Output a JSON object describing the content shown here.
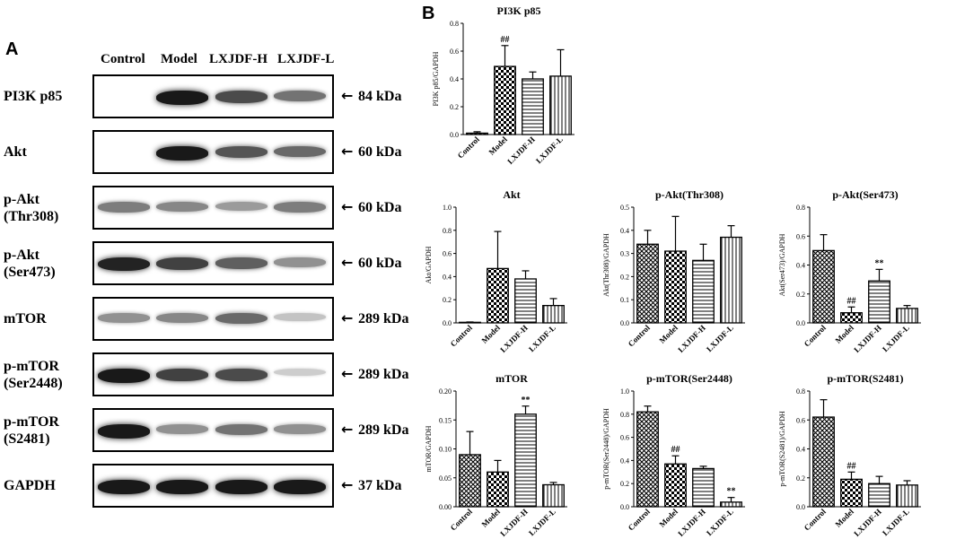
{
  "panelA": {
    "letter": "A",
    "lanes": [
      "Control",
      "Model",
      "LXJDF-H",
      "LXJDF-L"
    ],
    "blots": [
      {
        "label": "PI3K p85",
        "size": "84 kDa",
        "intensity": [
          0.0,
          0.95,
          0.7,
          0.5
        ]
      },
      {
        "label": "Akt",
        "size": "60 kDa",
        "intensity": [
          0.0,
          0.95,
          0.65,
          0.55
        ]
      },
      {
        "label": "p-Akt\n(Thr308)",
        "size": "60 kDa",
        "intensity": [
          0.45,
          0.4,
          0.3,
          0.45
        ]
      },
      {
        "label": "p-Akt\n(Ser473)",
        "size": "60 kDa",
        "intensity": [
          0.9,
          0.75,
          0.6,
          0.35
        ]
      },
      {
        "label": "mTOR",
        "size": "289 kDa",
        "intensity": [
          0.35,
          0.4,
          0.55,
          0.1
        ]
      },
      {
        "label": "p-mTOR\n(Ser2448)",
        "size": "289 kDa",
        "intensity": [
          0.95,
          0.75,
          0.7,
          0.05
        ]
      },
      {
        "label": "p-mTOR\n(S2481)",
        "size": "289 kDa",
        "intensity": [
          0.95,
          0.35,
          0.5,
          0.35
        ]
      },
      {
        "label": "GAPDH",
        "size": "37 kDa",
        "intensity": [
          0.95,
          0.95,
          0.95,
          0.95
        ]
      }
    ]
  },
  "panelB": {
    "letter": "B"
  },
  "chart_data": [
    {
      "type": "bar",
      "title": "PI3K p85",
      "ylabel": "PI3K p85/GAPDH",
      "categories": [
        "Control",
        "Model",
        "LXJDF-H",
        "LXJDF-L"
      ],
      "values": [
        0.01,
        0.49,
        0.4,
        0.42
      ],
      "errors": [
        0.01,
        0.15,
        0.05,
        0.19
      ],
      "ylim": [
        0,
        0.8
      ],
      "yticks": [
        "0.0",
        "0.2",
        "0.4",
        "0.6",
        "0.8"
      ],
      "annotations": [
        "",
        "##",
        "",
        ""
      ],
      "patterns": [
        "cross",
        "check",
        "hline",
        "vline"
      ]
    },
    {
      "type": "bar",
      "title": "Akt",
      "ylabel": "Akt/GAPDH",
      "categories": [
        "Control",
        "Model",
        "LXJDF-H",
        "LXJDF-L"
      ],
      "values": [
        0.005,
        0.47,
        0.38,
        0.15
      ],
      "errors": [
        0.003,
        0.32,
        0.07,
        0.06
      ],
      "ylim": [
        0,
        1.0
      ],
      "yticks": [
        "0.0",
        "0.2",
        "0.4",
        "0.6",
        "0.8",
        "1.0"
      ],
      "annotations": [
        "",
        "",
        "",
        ""
      ],
      "patterns": [
        "cross",
        "check",
        "hline",
        "vline"
      ]
    },
    {
      "type": "bar",
      "title": "p-Akt(Thr308)",
      "ylabel": "Akt(Thr308)/GAPDH",
      "categories": [
        "Control",
        "Model",
        "LXJDF-H",
        "LXJDF-L"
      ],
      "values": [
        0.34,
        0.31,
        0.27,
        0.37
      ],
      "errors": [
        0.06,
        0.15,
        0.07,
        0.05
      ],
      "ylim": [
        0,
        0.5
      ],
      "yticks": [
        "0.0",
        "0.1",
        "0.2",
        "0.3",
        "0.4",
        "0.5"
      ],
      "annotations": [
        "",
        "",
        "",
        ""
      ],
      "patterns": [
        "cross",
        "check",
        "hline",
        "vline"
      ]
    },
    {
      "type": "bar",
      "title": "p-Akt(Ser473)",
      "ylabel": "Akt(Ser473)/GAPDH",
      "categories": [
        "Control",
        "Model",
        "LXJDF-H",
        "LXJDF-L"
      ],
      "values": [
        0.5,
        0.07,
        0.29,
        0.1
      ],
      "errors": [
        0.11,
        0.04,
        0.08,
        0.02
      ],
      "ylim": [
        0,
        0.8
      ],
      "yticks": [
        "0.0",
        "0.2",
        "0.4",
        "0.6",
        "0.8"
      ],
      "annotations": [
        "",
        "##",
        "**",
        ""
      ],
      "patterns": [
        "cross",
        "check",
        "hline",
        "vline"
      ]
    },
    {
      "type": "bar",
      "title": "mTOR",
      "ylabel": "mTOR/GAPDH",
      "categories": [
        "Control",
        "Model",
        "LXJDF-H",
        "LXJDF-L"
      ],
      "values": [
        0.09,
        0.06,
        0.16,
        0.038
      ],
      "errors": [
        0.04,
        0.02,
        0.014,
        0.004
      ],
      "ylim": [
        0,
        0.2
      ],
      "yticks": [
        "0.00",
        "0.05",
        "0.10",
        "0.15",
        "0.20"
      ],
      "annotations": [
        "",
        "",
        "**",
        ""
      ],
      "patterns": [
        "cross",
        "check",
        "hline",
        "vline"
      ]
    },
    {
      "type": "bar",
      "title": "p-mTOR(Ser2448)",
      "ylabel": "p-mTOR(Ser2448)/GAPDH",
      "categories": [
        "Control",
        "Model",
        "LXJDF-H",
        "LXJDF-L"
      ],
      "values": [
        0.82,
        0.37,
        0.33,
        0.04
      ],
      "errors": [
        0.05,
        0.07,
        0.02,
        0.04
      ],
      "ylim": [
        0,
        1.0
      ],
      "yticks": [
        "0.0",
        "0.2",
        "0.4",
        "0.6",
        "0.8",
        "1.0"
      ],
      "annotations": [
        "",
        "##",
        "",
        "**"
      ],
      "patterns": [
        "cross",
        "check",
        "hline",
        "vline"
      ]
    },
    {
      "type": "bar",
      "title": "p-mTOR(S2481)",
      "ylabel": "p-mTOR(S2481)/GAPDH",
      "categories": [
        "Control",
        "Model",
        "LXJDF-H",
        "LXJDF-L"
      ],
      "values": [
        0.62,
        0.19,
        0.16,
        0.15
      ],
      "errors": [
        0.12,
        0.05,
        0.05,
        0.03
      ],
      "ylim": [
        0,
        0.8
      ],
      "yticks": [
        "0.0",
        "0.2",
        "0.4",
        "0.6",
        "0.8"
      ],
      "annotations": [
        "",
        "##",
        "",
        ""
      ],
      "patterns": [
        "cross",
        "check",
        "hline",
        "vline"
      ]
    }
  ]
}
